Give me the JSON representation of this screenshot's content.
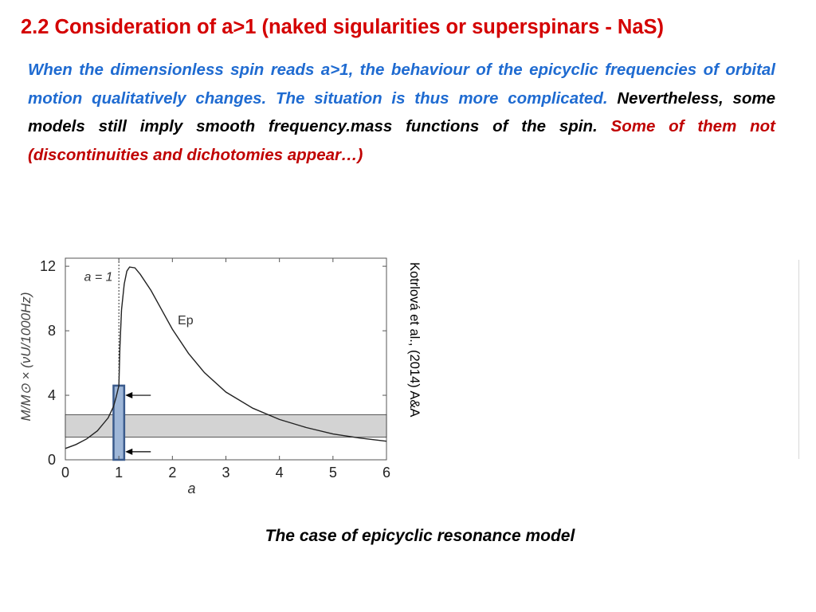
{
  "slide": {
    "title": "2.2  Consideration of  a>1  (naked sigularities or superspinars - NaS)",
    "paragraph": {
      "blue": "When the dimensionless spin reads a>1, the behaviour of the epicyclic frequencies of orbital motion qualitatively changes. The situation is thus more complicated.",
      "black": " Nevertheless, some models still imply smooth frequency.mass functions of the spin.",
      "red": " Some of them not (discontinuities and dichotomies appear…)"
    },
    "caption": "The case of epicyclic resonance model",
    "credit": "Kotrlová et al., (2014) A&A"
  },
  "figure": {
    "colors": {
      "curve": "#222222",
      "band": "#d3d3d3",
      "highlight": "#9fb7d8",
      "highlight_border": "#3a5a8c"
    },
    "chart_data": {
      "type": "line",
      "xlabel": "a",
      "ylabel": "M/M⊙ × (νU/1000Hz)",
      "xlim": [
        0,
        6
      ],
      "ylim": [
        0,
        12.5
      ],
      "xticks": [
        "0",
        "1",
        "2",
        "3",
        "4",
        "5",
        "6"
      ],
      "yticks": [
        "0",
        "4",
        "8",
        "12"
      ],
      "series": [
        {
          "name": "Ep",
          "x": [
            0,
            0.2,
            0.4,
            0.6,
            0.8,
            0.9,
            0.95,
            1.0,
            1.02,
            1.05,
            1.1,
            1.15,
            1.2,
            1.3,
            1.4,
            1.6,
            1.8,
            2.0,
            2.3,
            2.6,
            3.0,
            3.5,
            4.0,
            4.5,
            5.0,
            5.5,
            6.0
          ],
          "y": [
            0.7,
            0.95,
            1.3,
            1.8,
            2.6,
            3.3,
            3.9,
            4.6,
            7.0,
            9.3,
            10.9,
            11.7,
            11.95,
            11.9,
            11.5,
            10.5,
            9.3,
            8.1,
            6.6,
            5.4,
            4.2,
            3.2,
            2.5,
            2.0,
            1.6,
            1.35,
            1.15
          ]
        }
      ],
      "annotations": [
        "a = 1",
        "Ep"
      ],
      "vertical_reference": 1,
      "band": [
        1.4,
        2.8
      ],
      "highlight_x": [
        0.9,
        1.1
      ],
      "highlight_y": [
        0,
        4.6
      ],
      "arrows_y": [
        4.0,
        0.5
      ]
    }
  }
}
